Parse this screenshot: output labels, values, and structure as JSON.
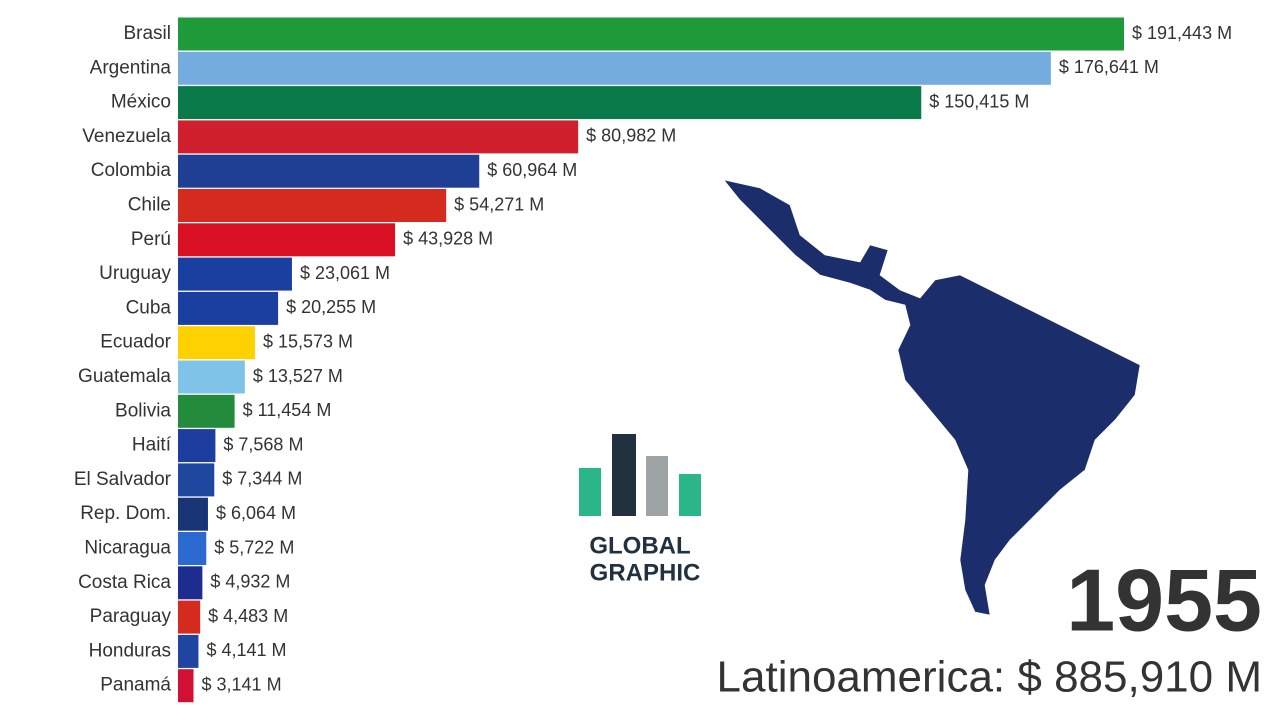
{
  "chart_data": {
    "type": "bar",
    "orientation": "horizontal",
    "categories": [
      "Brasil",
      "Argentina",
      "México",
      "Venezuela",
      "Colombia",
      "Chile",
      "Perú",
      "Uruguay",
      "Cuba",
      "Ecuador",
      "Guatemala",
      "Bolivia",
      "Haití",
      "El Salvador",
      "Rep. Dom.",
      "Nicaragua",
      "Costa Rica",
      "Paraguay",
      "Honduras",
      "Panamá"
    ],
    "values": [
      191443,
      176641,
      150415,
      80982,
      60964,
      54271,
      43928,
      23061,
      20255,
      15573,
      13527,
      11454,
      7568,
      7344,
      6064,
      5722,
      4932,
      4483,
      4141,
      3141
    ],
    "value_labels": [
      "$ 191,443 M",
      "$ 176,641 M",
      "$ 150,415 M",
      "$ 80,982 M",
      "$ 60,964 M",
      "$ 54,271 M",
      "$ 43,928 M",
      "$ 23,061 M",
      "$ 20,255 M",
      "$ 15,573 M",
      "$ 13,527 M",
      "$ 11,454 M",
      "$ 7,568 M",
      "$ 7,344 M",
      "$ 6,064 M",
      "$ 5,722 M",
      "$ 4,932 M",
      "$ 4,483 M",
      "$ 4,141 M",
      "$ 3,141 M"
    ],
    "colors": [
      "#1f9a3a",
      "#74acdf",
      "#0b7a4a",
      "#d0202e",
      "#1e3f94",
      "#d52b1e",
      "#d91023",
      "#1a3fa0",
      "#1b3fa0",
      "#ffd100",
      "#7fc4e8",
      "#238b3b",
      "#1d3e9e",
      "#1e47a0",
      "#1a3576",
      "#2b6ad1",
      "#1d2d8f",
      "#d52b1e",
      "#1f45a0",
      "#d21034"
    ],
    "year": "1955",
    "total_label": "Latinoamerica: $ 885,910 M"
  },
  "logo": {
    "line1": "GLOBAL",
    "line2": "GRAPHIC"
  }
}
